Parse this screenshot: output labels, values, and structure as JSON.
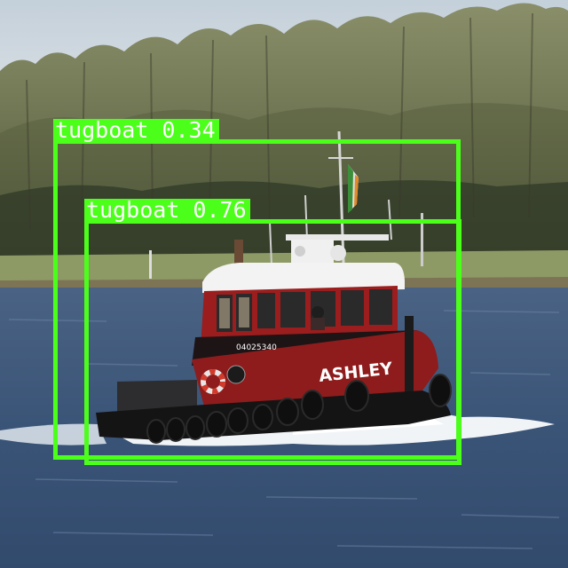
{
  "image": {
    "description_scene": "tugboat on river",
    "boat_name": "ASHLEY",
    "hull_number": "04025340"
  },
  "detections": [
    {
      "label": "tugboat",
      "score": "0.34",
      "text": "tugboat 0.34"
    },
    {
      "label": "tugboat",
      "score": "0.76",
      "text": "tugboat 0.76"
    }
  ],
  "colors": {
    "box": "#4cff1a",
    "label_text": "#ffffff",
    "sky": "#c9d3dc",
    "water": "#3b5578",
    "hull": "#8e1c1c",
    "cabin_red": "#9e1f1f",
    "roof": "#f2f2f2"
  }
}
